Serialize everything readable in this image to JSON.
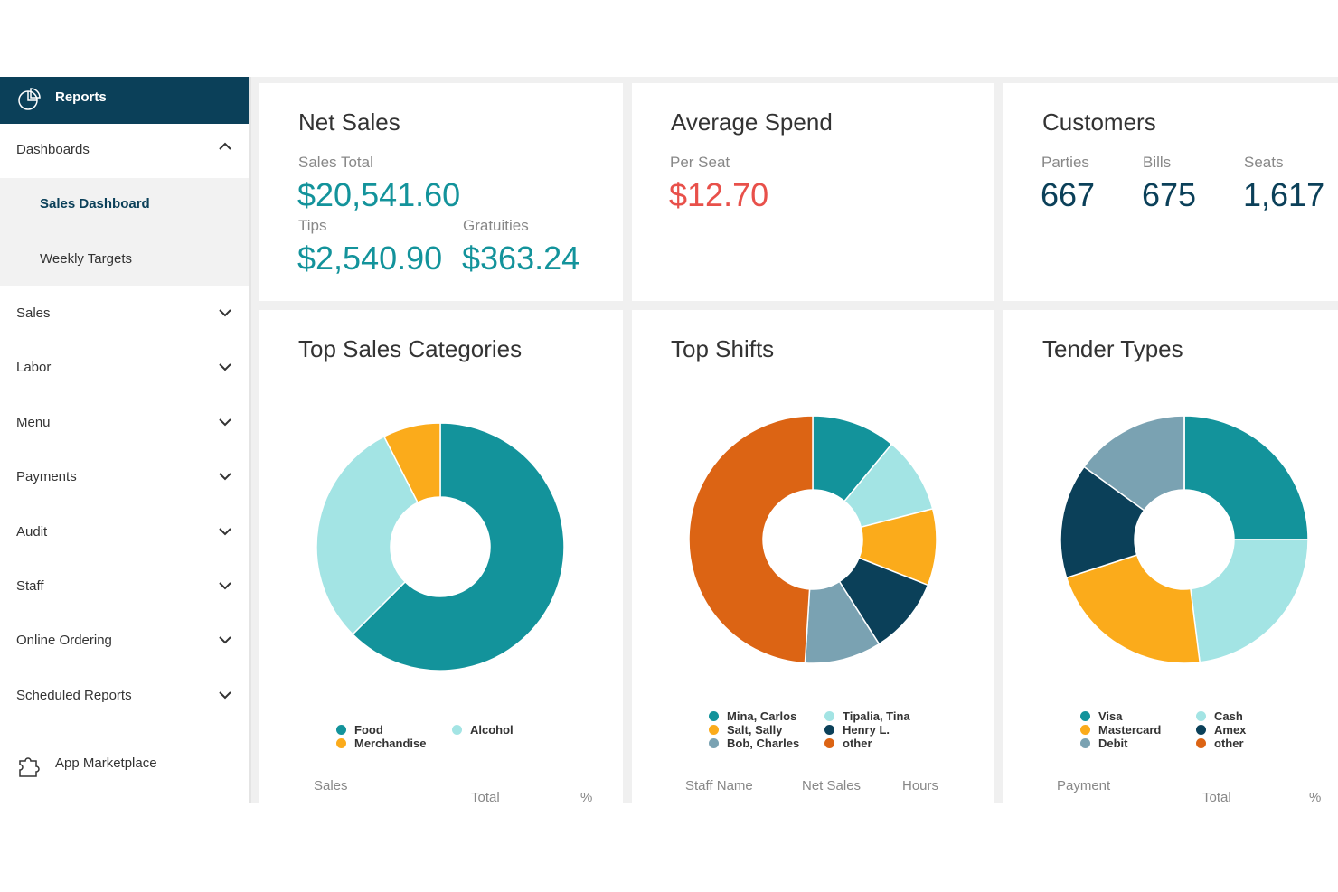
{
  "sidebar": {
    "header": "Reports",
    "items": [
      {
        "label": "Dashboards",
        "children": [
          "Sales Dashboard",
          "Weekly Targets"
        ]
      },
      {
        "label": "Sales"
      },
      {
        "label": "Labor"
      },
      {
        "label": "Menu"
      },
      {
        "label": "Payments"
      },
      {
        "label": "Audit"
      },
      {
        "label": "Staff"
      },
      {
        "label": "Online Ordering"
      },
      {
        "label": "Scheduled Reports"
      }
    ],
    "footer": "App Marketplace"
  },
  "kpi_cards": [
    {
      "title": "Net Sales",
      "metrics": [
        {
          "label": "Sales Total",
          "value": "$20,541.60"
        },
        {
          "label": "Tips",
          "value": "$2,540.90"
        },
        {
          "label": "Gratuities",
          "value": "$363.24"
        }
      ]
    },
    {
      "title": "Average Spend",
      "metrics": [
        {
          "label": "Per Seat",
          "value": "$12.70"
        }
      ]
    },
    {
      "title": "Customers",
      "metrics": [
        {
          "label": "Parties",
          "value": "667"
        },
        {
          "label": "Bills",
          "value": "675"
        },
        {
          "label": "Seats",
          "value": "1,617"
        }
      ]
    }
  ],
  "chart_data": [
    {
      "type": "donut",
      "title": "Top Sales Categories",
      "categories": [
        "Food",
        "Alcohol",
        "Merchandise"
      ],
      "values": [
        62.5,
        30,
        7.5
      ],
      "colors": [
        "#13939b",
        "#a3e4e4",
        "#fbab1b"
      ],
      "columns": [
        "Sales",
        "Total",
        "%"
      ]
    },
    {
      "type": "donut",
      "title": "Top Shifts",
      "categories": [
        "Mina, Carlos",
        "Tipalia, Tina",
        "Salt, Sally",
        "Henry L.",
        "Bob, Charles",
        "other"
      ],
      "values": [
        11,
        10,
        10,
        10,
        10,
        49
      ],
      "colors": [
        "#13939b",
        "#a3e4e4",
        "#fbab1b",
        "#0b4059",
        "#7aa2b2",
        "#dc6414"
      ],
      "columns": [
        "Staff Name",
        "Net Sales",
        "Hours"
      ]
    },
    {
      "type": "donut",
      "title": "Tender Types",
      "categories": [
        "Visa",
        "Cash",
        "Mastercard",
        "Amex",
        "Debit",
        "other"
      ],
      "values": [
        25,
        23,
        22,
        15,
        15,
        0
      ],
      "colors": [
        "#13939b",
        "#a3e4e4",
        "#fbab1b",
        "#0b4059",
        "#7aa2b2",
        "#dc6414"
      ],
      "columns": [
        "Payment",
        "Total",
        "%"
      ]
    }
  ]
}
